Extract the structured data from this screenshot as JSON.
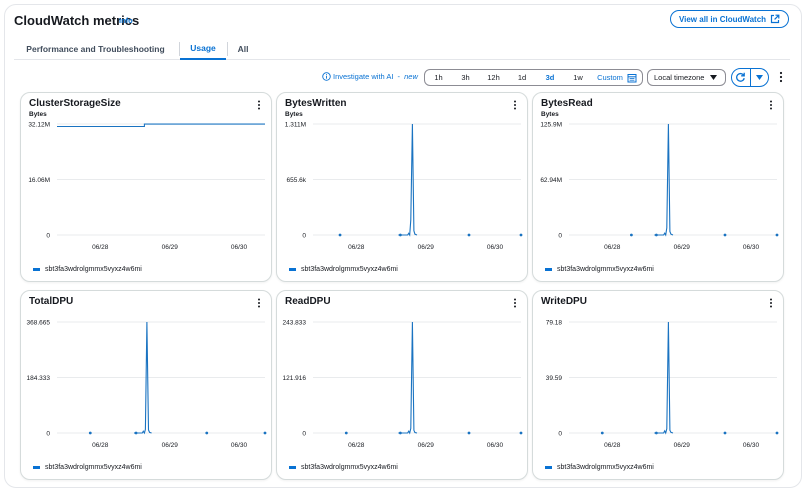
{
  "header": {
    "title": "CloudWatch metrics",
    "info": "Info",
    "view_all": "View all in CloudWatch"
  },
  "tabs": [
    {
      "label": "Performance and Troubleshooting",
      "active": false
    },
    {
      "label": "Usage",
      "active": true
    },
    {
      "label": "All",
      "active": false
    }
  ],
  "toolbar": {
    "investigate_label": "Investigate with AI",
    "investigate_sep": " - ",
    "investigate_new": "new",
    "ranges": [
      "1h",
      "3h",
      "12h",
      "1d",
      "3d",
      "1w"
    ],
    "active_range": "3d",
    "custom_label": "Custom",
    "timezone": "Local timezone"
  },
  "colors": {
    "accent": "#0972d3",
    "series": "#1a73c1",
    "grid": "#e9ebed",
    "axis": "#16191f"
  },
  "chart_data": [
    {
      "type": "line",
      "title": "ClusterStorageSize",
      "unit": "Bytes",
      "y_ticks": [
        "32.12M",
        "16.06M",
        "0"
      ],
      "x_ticks": [
        "06/28",
        "06/29",
        "06/30"
      ],
      "x_domain": [
        0,
        1
      ],
      "x_tick_positions": [
        0.208,
        0.542,
        0.875
      ],
      "y_max": 32.12,
      "series": [
        {
          "name": "sbt3fa3wdrolgmmx5vyxz4w6mi",
          "points": [
            [
              0.0,
              31.4
            ],
            [
              0.42,
              31.4
            ],
            [
              0.42,
              32.1
            ],
            [
              1.0,
              32.1
            ]
          ],
          "dots": []
        }
      ]
    },
    {
      "type": "line",
      "title": "BytesWritten",
      "unit": "Bytes",
      "y_ticks": [
        "1.311M",
        "655.6k",
        "0"
      ],
      "x_ticks": [
        "06/28",
        "06/29",
        "06/30"
      ],
      "x_domain": [
        0,
        1
      ],
      "x_tick_positions": [
        0.208,
        0.542,
        0.875
      ],
      "y_max": 1.311,
      "series": [
        {
          "name": "sbt3fa3wdrolgmmx5vyxz4w6mi",
          "points": [
            [
              0.41,
              0
            ],
            [
              0.455,
              0
            ],
            [
              0.46,
              0.02
            ],
            [
              0.465,
              0
            ],
            [
              0.47,
              0.18
            ],
            [
              0.478,
              1.311
            ],
            [
              0.485,
              0.05
            ],
            [
              0.49,
              0.01
            ],
            [
              0.5,
              0
            ]
          ],
          "dots": [
            [
              0.13,
              0
            ],
            [
              0.42,
              0
            ],
            [
              0.75,
              0
            ],
            [
              1.0,
              0
            ]
          ]
        }
      ]
    },
    {
      "type": "line",
      "title": "BytesRead",
      "unit": "Bytes",
      "y_ticks": [
        "125.9M",
        "62.94M",
        "0"
      ],
      "x_ticks": [
        "06/28",
        "06/29",
        "06/30"
      ],
      "x_domain": [
        0,
        1
      ],
      "x_tick_positions": [
        0.208,
        0.542,
        0.875
      ],
      "y_max": 125.9,
      "series": [
        {
          "name": "sbt3fa3wdrolgmmx5vyxz4w6mi",
          "points": [
            [
              0.41,
              0
            ],
            [
              0.455,
              0
            ],
            [
              0.46,
              2
            ],
            [
              0.465,
              0
            ],
            [
              0.47,
              8
            ],
            [
              0.478,
              125.9
            ],
            [
              0.485,
              4
            ],
            [
              0.49,
              1
            ],
            [
              0.5,
              0
            ]
          ],
          "dots": [
            [
              0.3,
              0
            ],
            [
              0.42,
              0
            ],
            [
              0.75,
              0
            ],
            [
              1.0,
              0
            ]
          ]
        }
      ]
    },
    {
      "type": "line",
      "title": "TotalDPU",
      "unit": "",
      "y_ticks": [
        "368.665",
        "184.333",
        "0"
      ],
      "x_ticks": [
        "06/28",
        "06/29",
        "06/30"
      ],
      "x_domain": [
        0,
        1
      ],
      "x_tick_positions": [
        0.208,
        0.542,
        0.875
      ],
      "y_max": 368.665,
      "series": [
        {
          "name": "sbt3fa3wdrolgmmx5vyxz4w6mi",
          "points": [
            [
              0.37,
              0
            ],
            [
              0.41,
              0
            ],
            [
              0.415,
              6
            ],
            [
              0.42,
              0
            ],
            [
              0.425,
              12
            ],
            [
              0.432,
              368.665
            ],
            [
              0.44,
              10
            ],
            [
              0.445,
              2
            ],
            [
              0.455,
              0
            ]
          ],
          "dots": [
            [
              0.16,
              0
            ],
            [
              0.38,
              0
            ],
            [
              0.72,
              0
            ],
            [
              1.0,
              0
            ]
          ]
        }
      ]
    },
    {
      "type": "line",
      "title": "ReadDPU",
      "unit": "",
      "y_ticks": [
        "243.833",
        "121.916",
        "0"
      ],
      "x_ticks": [
        "06/28",
        "06/29",
        "06/30"
      ],
      "x_domain": [
        0,
        1
      ],
      "x_tick_positions": [
        0.208,
        0.542,
        0.875
      ],
      "y_max": 243.833,
      "series": [
        {
          "name": "sbt3fa3wdrolgmmx5vyxz4w6mi",
          "points": [
            [
              0.41,
              0
            ],
            [
              0.455,
              0
            ],
            [
              0.46,
              4
            ],
            [
              0.465,
              0
            ],
            [
              0.47,
              10
            ],
            [
              0.478,
              243.833
            ],
            [
              0.485,
              6
            ],
            [
              0.49,
              1
            ],
            [
              0.5,
              0
            ]
          ],
          "dots": [
            [
              0.16,
              0
            ],
            [
              0.42,
              0
            ],
            [
              0.75,
              0
            ],
            [
              1.0,
              0
            ]
          ]
        }
      ]
    },
    {
      "type": "line",
      "title": "WriteDPU",
      "unit": "",
      "y_ticks": [
        "79.18",
        "39.59",
        "0"
      ],
      "x_ticks": [
        "06/28",
        "06/29",
        "06/30"
      ],
      "x_domain": [
        0,
        1
      ],
      "x_tick_positions": [
        0.208,
        0.542,
        0.875
      ],
      "y_max": 79.18,
      "series": [
        {
          "name": "sbt3fa3wdrolgmmx5vyxz4w6mi",
          "points": [
            [
              0.41,
              0
            ],
            [
              0.455,
              0
            ],
            [
              0.46,
              1.5
            ],
            [
              0.465,
              0
            ],
            [
              0.47,
              3
            ],
            [
              0.478,
              79.18
            ],
            [
              0.485,
              2
            ],
            [
              0.49,
              0.5
            ],
            [
              0.5,
              0
            ]
          ],
          "dots": [
            [
              0.16,
              0
            ],
            [
              0.42,
              0
            ],
            [
              0.75,
              0
            ],
            [
              1.0,
              0
            ]
          ]
        }
      ]
    }
  ]
}
